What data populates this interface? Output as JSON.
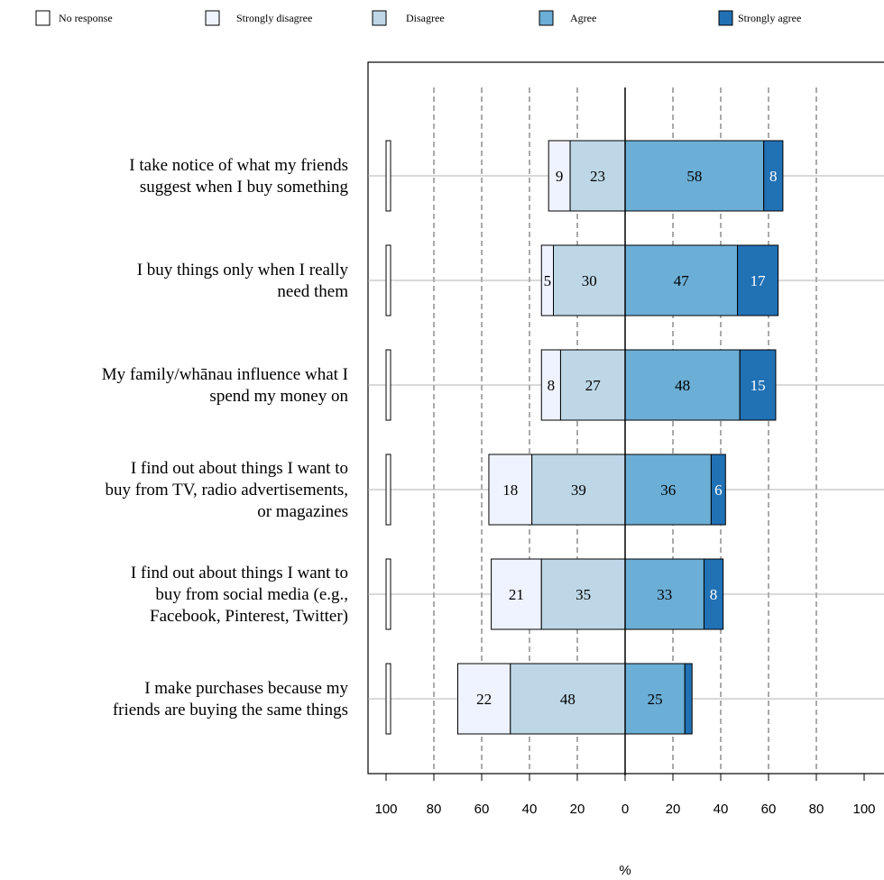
{
  "chart_data": {
    "type": "bar",
    "orientation": "horizontal",
    "stacked": true,
    "diverging": true,
    "xlabel": "%",
    "xlim": [
      -100,
      100
    ],
    "x_tick_labels": [
      "100",
      "80",
      "60",
      "40",
      "20",
      "0",
      "20",
      "40",
      "60",
      "80",
      "100"
    ],
    "x_tick_values": [
      -100,
      -80,
      -60,
      -40,
      -20,
      0,
      20,
      40,
      60,
      80,
      100
    ],
    "grid": true,
    "legend_position": "top",
    "legend": [
      {
        "name": "No response",
        "color": "#ffffff"
      },
      {
        "name": "Strongly disagree",
        "color": "#eff3ff"
      },
      {
        "name": "Disagree",
        "color": "#bdd7e7"
      },
      {
        "name": "Agree",
        "color": "#6baed6"
      },
      {
        "name": "Strongly agree",
        "color": "#2171b5"
      }
    ],
    "categories": [
      [
        "I take notice of what my friends",
        "suggest when I buy something"
      ],
      [
        "I buy things only when I really",
        "need them"
      ],
      [
        "My family/whānau influence what I",
        "spend my money on"
      ],
      [
        "I find out about things I want to",
        "buy from TV, radio advertisements,",
        "or magazines"
      ],
      [
        "I find out about things I want to",
        "buy from social media (e.g.,",
        "Facebook, Pinterest, Twitter)"
      ],
      [
        "I make purchases because my",
        "friends are buying the same things"
      ]
    ],
    "series": [
      {
        "name": "No response",
        "values": [
          1,
          1,
          1,
          1,
          1,
          1
        ]
      },
      {
        "name": "Strongly disagree",
        "values": [
          9,
          5,
          8,
          18,
          21,
          22
        ]
      },
      {
        "name": "Disagree",
        "values": [
          23,
          30,
          27,
          39,
          35,
          48
        ]
      },
      {
        "name": "Agree",
        "values": [
          58,
          47,
          48,
          36,
          33,
          25
        ]
      },
      {
        "name": "Strongly agree",
        "values": [
          8,
          17,
          15,
          6,
          8,
          3
        ]
      }
    ],
    "data_labels": [
      [
        "",
        "9",
        "23",
        "58",
        "8"
      ],
      [
        "",
        "5",
        "30",
        "47",
        "17"
      ],
      [
        "",
        "8",
        "27",
        "48",
        "15"
      ],
      [
        "",
        "18",
        "39",
        "36",
        "6"
      ],
      [
        "",
        "21",
        "35",
        "33",
        "8"
      ],
      [
        "",
        "22",
        "48",
        "25",
        ""
      ]
    ]
  }
}
